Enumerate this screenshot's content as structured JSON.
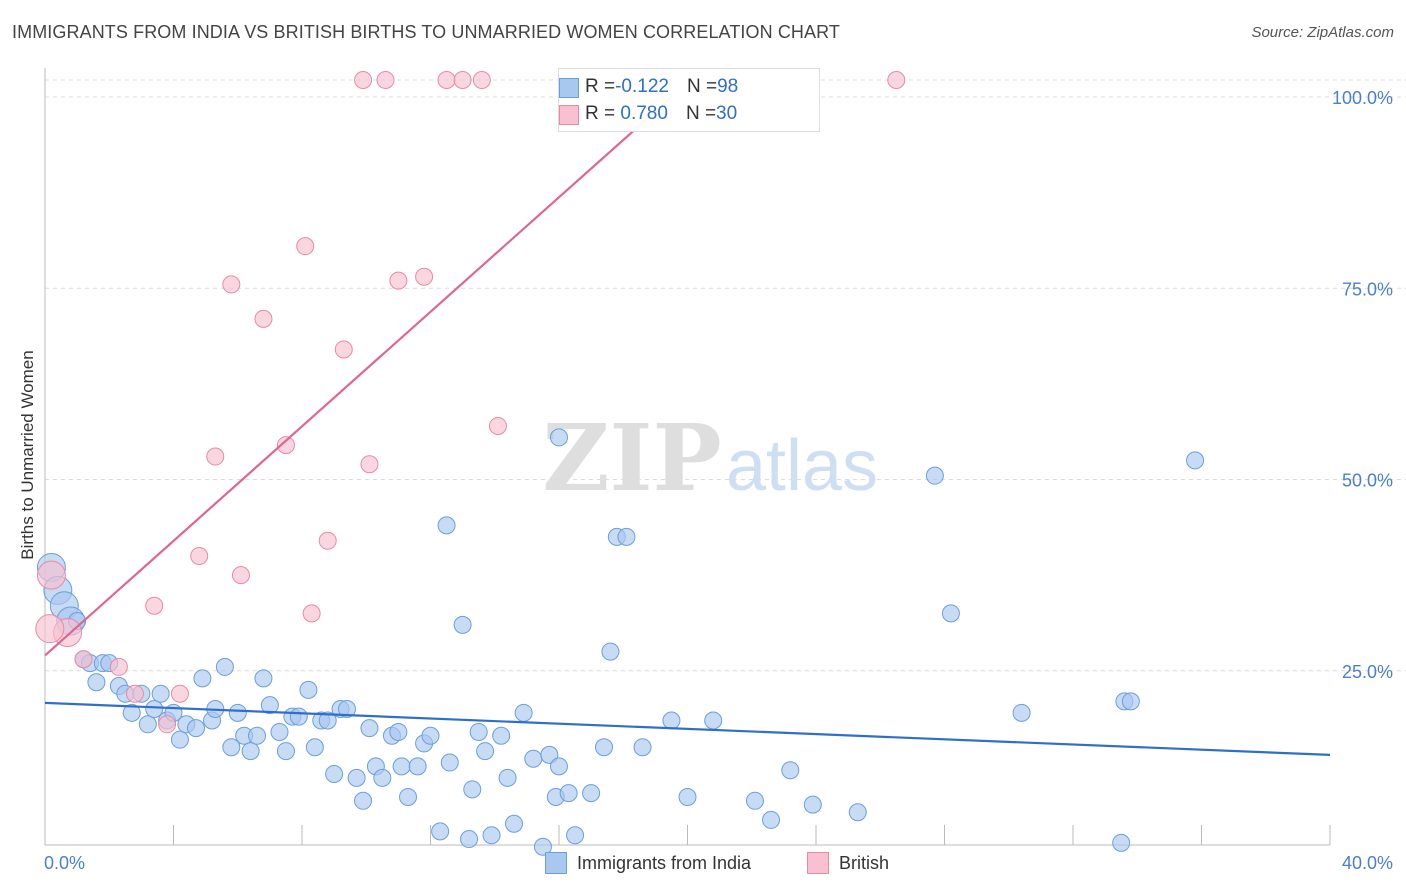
{
  "title": "IMMIGRANTS FROM INDIA VS BRITISH BIRTHS TO UNMARRIED WOMEN CORRELATION CHART",
  "source": "Source: ZipAtlas.com",
  "watermark": {
    "zip": "ZIP",
    "atlas": "atlas"
  },
  "legend_top": [
    {
      "r_label": "R = ",
      "r_value": "-0.122",
      "n_label": "N = ",
      "n_value": "98"
    },
    {
      "r_label": "R = ",
      "r_value": " 0.780",
      "n_label": "N = ",
      "n_value": "30"
    }
  ],
  "chart_data": {
    "type": "scatter",
    "ylabel": "Births to Unmarried Women",
    "xlim": [
      0,
      40
    ],
    "ylim": [
      0,
      100
    ],
    "x_tick_labels": [
      {
        "x": 0,
        "label": "0.0%"
      },
      {
        "x": 40,
        "label": "40.0%"
      }
    ],
    "y_tick_labels": [
      {
        "y": 25,
        "label": "25.0%"
      },
      {
        "y": 50,
        "label": "50.0%"
      },
      {
        "y": 75,
        "label": "75.0%"
      },
      {
        "y": 100,
        "label": "100.0%"
      }
    ],
    "grid": true,
    "legend_position": "bottom",
    "series": [
      {
        "name": "Immigrants from India",
        "color": "#a9c8f0",
        "stroke": "#6b9fdc",
        "trend_color": "#2f6fcc",
        "trend": {
          "x": [
            0,
            40
          ],
          "y": [
            20.8,
            14.0
          ]
        },
        "points": [
          [
            0.2,
            38.5
          ],
          [
            0.4,
            35.5
          ],
          [
            0.6,
            33.5
          ],
          [
            0.8,
            31.5
          ],
          [
            1.0,
            31.5
          ],
          [
            1.2,
            26.5
          ],
          [
            1.4,
            26.0
          ],
          [
            1.6,
            23.5
          ],
          [
            1.8,
            26.0
          ],
          [
            2.0,
            26.0
          ],
          [
            2.3,
            23.0
          ],
          [
            2.5,
            22.0
          ],
          [
            2.7,
            19.5
          ],
          [
            3.0,
            22.0
          ],
          [
            3.2,
            18.0
          ],
          [
            3.4,
            20.0
          ],
          [
            3.6,
            22.0
          ],
          [
            3.8,
            18.5
          ],
          [
            4.0,
            19.5
          ],
          [
            4.2,
            16.0
          ],
          [
            4.4,
            18.0
          ],
          [
            4.7,
            17.5
          ],
          [
            4.9,
            24.0
          ],
          [
            5.2,
            18.5
          ],
          [
            5.3,
            20.0
          ],
          [
            5.6,
            25.5
          ],
          [
            5.8,
            15.0
          ],
          [
            6.0,
            19.5
          ],
          [
            6.2,
            16.5
          ],
          [
            6.4,
            14.5
          ],
          [
            6.6,
            16.5
          ],
          [
            6.8,
            24.0
          ],
          [
            7.0,
            20.5
          ],
          [
            7.3,
            17.0
          ],
          [
            7.5,
            14.5
          ],
          [
            7.7,
            19.0
          ],
          [
            7.9,
            19.0
          ],
          [
            8.2,
            22.5
          ],
          [
            8.4,
            15.0
          ],
          [
            8.6,
            18.5
          ],
          [
            8.8,
            18.5
          ],
          [
            9.0,
            11.5
          ],
          [
            9.2,
            20.0
          ],
          [
            9.4,
            20.0
          ],
          [
            9.7,
            11.0
          ],
          [
            9.9,
            8.0
          ],
          [
            10.1,
            17.5
          ],
          [
            10.3,
            12.5
          ],
          [
            10.5,
            11.0
          ],
          [
            10.8,
            16.5
          ],
          [
            11.0,
            17.0
          ],
          [
            11.1,
            12.5
          ],
          [
            11.3,
            8.5
          ],
          [
            11.6,
            12.5
          ],
          [
            11.8,
            15.5
          ],
          [
            12.0,
            16.5
          ],
          [
            12.3,
            4.0
          ],
          [
            12.5,
            44.0
          ],
          [
            12.6,
            13.0
          ],
          [
            13.0,
            31.0
          ],
          [
            13.2,
            3.0
          ],
          [
            13.3,
            9.5
          ],
          [
            13.5,
            17.0
          ],
          [
            13.7,
            14.5
          ],
          [
            13.9,
            3.5
          ],
          [
            14.2,
            16.5
          ],
          [
            14.4,
            11.0
          ],
          [
            14.6,
            5.0
          ],
          [
            14.9,
            19.5
          ],
          [
            15.2,
            13.5
          ],
          [
            15.5,
            2.0
          ],
          [
            15.7,
            14.0
          ],
          [
            15.9,
            8.5
          ],
          [
            16.0,
            12.5
          ],
          [
            16.3,
            9.0
          ],
          [
            16.5,
            3.5
          ],
          [
            17.0,
            9.0
          ],
          [
            17.4,
            15.0
          ],
          [
            17.6,
            27.5
          ],
          [
            17.8,
            42.5
          ],
          [
            18.6,
            15.0
          ],
          [
            19.5,
            18.5
          ],
          [
            20.0,
            8.5
          ],
          [
            20.8,
            18.5
          ],
          [
            22.1,
            8.0
          ],
          [
            22.6,
            5.5
          ],
          [
            23.2,
            12.0
          ],
          [
            23.9,
            7.5
          ],
          [
            25.3,
            6.5
          ],
          [
            27.7,
            50.5
          ],
          [
            28.2,
            32.5
          ],
          [
            30.4,
            19.5
          ],
          [
            33.6,
            21.0
          ],
          [
            33.8,
            21.0
          ],
          [
            35.8,
            52.5
          ],
          [
            33.5,
            2.5
          ],
          [
            18.1,
            42.5
          ],
          [
            16.0,
            55.5
          ]
        ]
      },
      {
        "name": "British",
        "color": "#f8c0d0",
        "stroke": "#e88aa6",
        "trend_color": "#e0668e",
        "trend": {
          "x": [
            0,
            19.5
          ],
          "y": [
            27.0,
            100.0
          ]
        },
        "points": [
          [
            0.2,
            37.5
          ],
          [
            0.7,
            30.0
          ],
          [
            1.2,
            26.5
          ],
          [
            2.3,
            25.5
          ],
          [
            2.8,
            22.0
          ],
          [
            3.4,
            33.5
          ],
          [
            3.8,
            18.0
          ],
          [
            4.2,
            22.0
          ],
          [
            4.8,
            40.0
          ],
          [
            5.3,
            53.0
          ],
          [
            5.8,
            75.5
          ],
          [
            6.1,
            37.5
          ],
          [
            6.8,
            71.0
          ],
          [
            7.5,
            54.5
          ],
          [
            8.1,
            80.5
          ],
          [
            8.3,
            32.5
          ],
          [
            8.8,
            42.0
          ],
          [
            9.3,
            67.0
          ],
          [
            10.1,
            52.0
          ],
          [
            11.8,
            76.5
          ],
          [
            14.1,
            57.0
          ],
          [
            9.9,
            100.0
          ],
          [
            10.6,
            100.0
          ],
          [
            12.5,
            100.0
          ],
          [
            13.0,
            100.0
          ],
          [
            13.6,
            100.0
          ],
          [
            19.2,
            100.0
          ],
          [
            26.5,
            100.0
          ],
          [
            0.15,
            30.5
          ],
          [
            11.0,
            76.0
          ]
        ]
      }
    ]
  }
}
